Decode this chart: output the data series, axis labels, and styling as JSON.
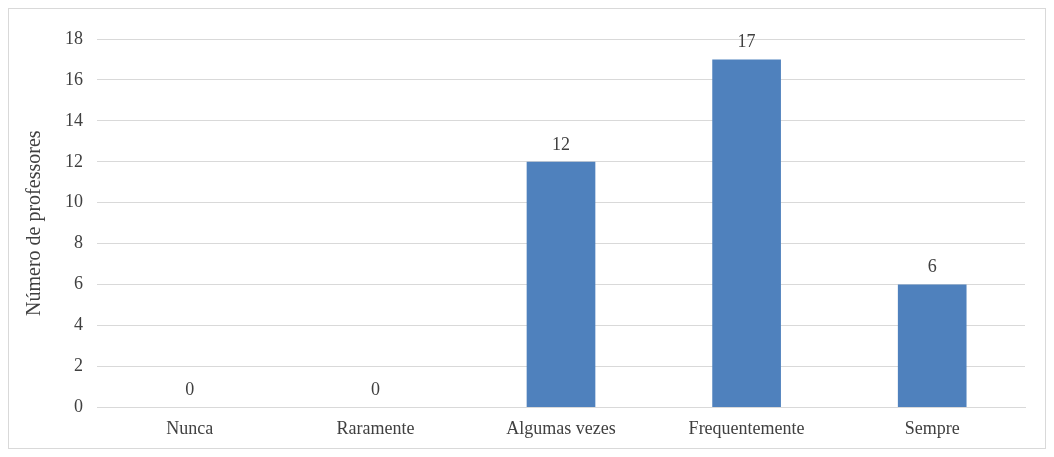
{
  "chart_data": {
    "type": "bar",
    "ylabel": "Número de professores",
    "categories": [
      "Nunca",
      "Raramente",
      "Algumas vezes",
      "Frequentemente",
      "Sempre"
    ],
    "values": [
      0,
      0,
      12,
      17,
      6
    ],
    "color": "#4f81bd",
    "ylim": [
      0,
      18
    ],
    "yticks": [
      0,
      2,
      4,
      6,
      8,
      10,
      12,
      14,
      16,
      18
    ],
    "grid": "y",
    "data_labels": true,
    "legend": false
  }
}
